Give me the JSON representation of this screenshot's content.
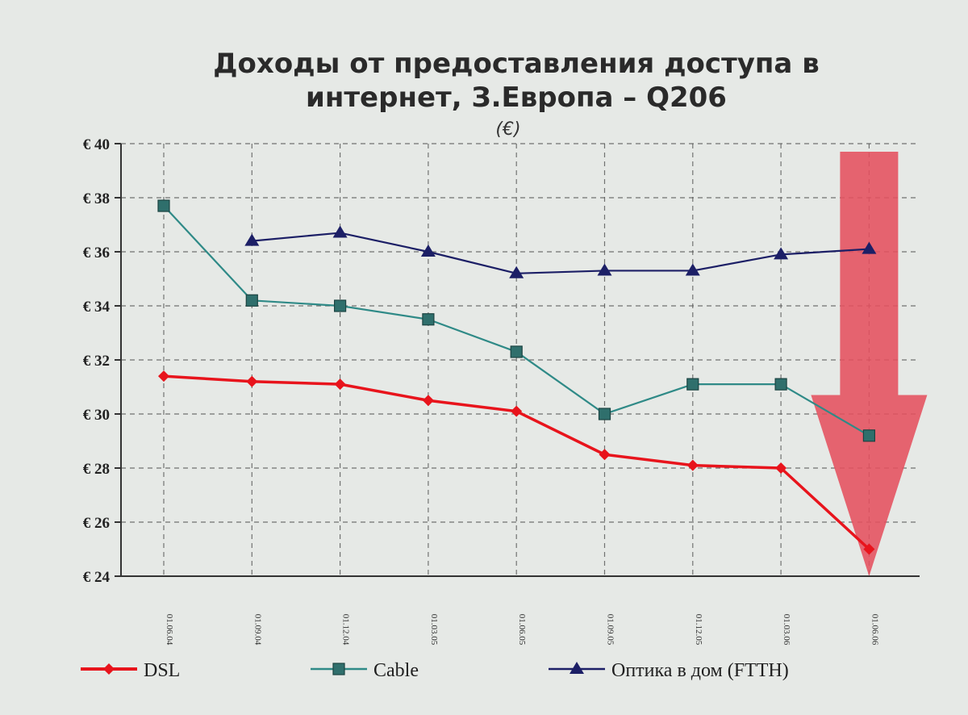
{
  "chart_data": {
    "type": "line",
    "title_line1": "Доходы  от предоставления доступа в",
    "title_line2": "интернет, З.Европа – Q206",
    "subtitle": "(€)",
    "categories": [
      "01.06.04",
      "01.09.04",
      "01.12.04",
      "01.03.05",
      "01.06.05",
      "01.09.05",
      "01.12.05",
      "01.03.06",
      "01.06.06"
    ],
    "ylim": [
      24,
      40
    ],
    "yticks": [
      {
        "value": 40,
        "label": "€ 40"
      },
      {
        "value": 38,
        "label": "€ 38"
      },
      {
        "value": 36,
        "label": "€ 36"
      },
      {
        "value": 34,
        "label": "€ 34"
      },
      {
        "value": 32,
        "label": "€ 32"
      },
      {
        "value": 30,
        "label": "€ 30"
      },
      {
        "value": 28,
        "label": "€ 28"
      },
      {
        "value": 26,
        "label": "€ 26"
      },
      {
        "value": 24,
        "label": "€ 24"
      }
    ],
    "grid": true,
    "legend_position": "bottom",
    "series": [
      {
        "name": "DSL",
        "color": "#e8141c",
        "marker": "diamond",
        "values": [
          31.4,
          31.2,
          31.1,
          30.5,
          30.1,
          28.5,
          28.1,
          28.0,
          25.0
        ]
      },
      {
        "name": "Cable",
        "color": "#2f8a87",
        "marker": "square",
        "values": [
          37.7,
          34.2,
          34.0,
          33.5,
          32.3,
          30.0,
          31.1,
          31.1,
          29.2
        ]
      },
      {
        "name": "Оптика в дом (FTTH)",
        "color": "#1c1f66",
        "marker": "triangle",
        "values": [
          null,
          36.4,
          36.7,
          36.0,
          35.2,
          35.3,
          35.3,
          35.9,
          36.1
        ]
      }
    ],
    "annotation": {
      "type": "down-arrow",
      "color": "#e5505f",
      "category": "01.06.06"
    }
  }
}
